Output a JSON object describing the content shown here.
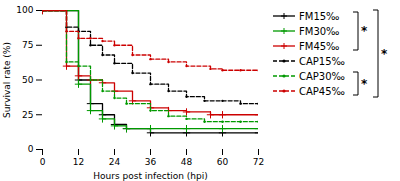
{
  "chart_data": {
    "type": "step",
    "xlabel": "Hours post infection (hpi)",
    "ylabel": "Survival rate (%)",
    "xlim": [
      0,
      72
    ],
    "ylim": [
      0,
      100
    ],
    "xticks": [
      0,
      12,
      24,
      36,
      48,
      60,
      72
    ],
    "yticks": [
      0,
      25,
      50,
      75,
      100
    ],
    "grid": false,
    "legend": "right",
    "series": [
      {
        "name": "FM15‰",
        "color": "#000000",
        "line_style": "solid",
        "marker": "plus",
        "x": [
          0,
          8,
          12,
          16,
          20,
          24,
          28,
          36,
          48,
          60,
          72
        ],
        "values": [
          100,
          100,
          50,
          33,
          25,
          18,
          15,
          12,
          12,
          12,
          12
        ]
      },
      {
        "name": "FM30‰",
        "color": "#009900",
        "line_style": "solid",
        "marker": "plus",
        "x": [
          0,
          8,
          12,
          16,
          20,
          24,
          28,
          36,
          48,
          60,
          72
        ],
        "values": [
          100,
          100,
          47,
          28,
          22,
          17,
          15,
          15,
          15,
          15,
          15
        ]
      },
      {
        "name": "FM45‰",
        "color": "#cc0000",
        "line_style": "solid",
        "marker": "plus",
        "x": [
          0,
          8,
          12,
          16,
          20,
          24,
          30,
          36,
          42,
          48,
          56,
          60,
          72
        ],
        "values": [
          100,
          60,
          53,
          50,
          48,
          42,
          35,
          30,
          28,
          27,
          25,
          25,
          25
        ]
      },
      {
        "name": "CAP15‰",
        "color": "#000000",
        "line_style": "dashed",
        "marker": "dot",
        "x": [
          0,
          8,
          12,
          16,
          20,
          24,
          30,
          36,
          42,
          48,
          54,
          60,
          66,
          72
        ],
        "values": [
          100,
          88,
          85,
          75,
          68,
          62,
          55,
          47,
          42,
          38,
          35,
          35,
          33,
          33
        ]
      },
      {
        "name": "CAP30‰",
        "color": "#009900",
        "line_style": "dashed",
        "marker": "dot",
        "x": [
          0,
          8,
          12,
          16,
          20,
          24,
          28,
          36,
          42,
          48,
          54,
          60,
          66,
          72
        ],
        "values": [
          100,
          63,
          60,
          50,
          42,
          37,
          33,
          28,
          24,
          22,
          20,
          20,
          20,
          20
        ]
      },
      {
        "name": "CAP45‰",
        "color": "#cc0000",
        "line_style": "dashed",
        "marker": "dot",
        "x": [
          0,
          8,
          12,
          16,
          20,
          24,
          30,
          36,
          42,
          48,
          56,
          60,
          66,
          72
        ],
        "values": [
          100,
          85,
          80,
          80,
          78,
          75,
          68,
          65,
          63,
          60,
          58,
          57,
          57,
          57
        ]
      }
    ],
    "annotations": [
      {
        "text": "*",
        "from": "FM15‰",
        "to": "FM45‰"
      },
      {
        "text": "*",
        "from": "FM15‰",
        "to": "CAP45‰"
      },
      {
        "text": "*",
        "from": "CAP30‰",
        "to": "CAP45‰"
      }
    ]
  }
}
